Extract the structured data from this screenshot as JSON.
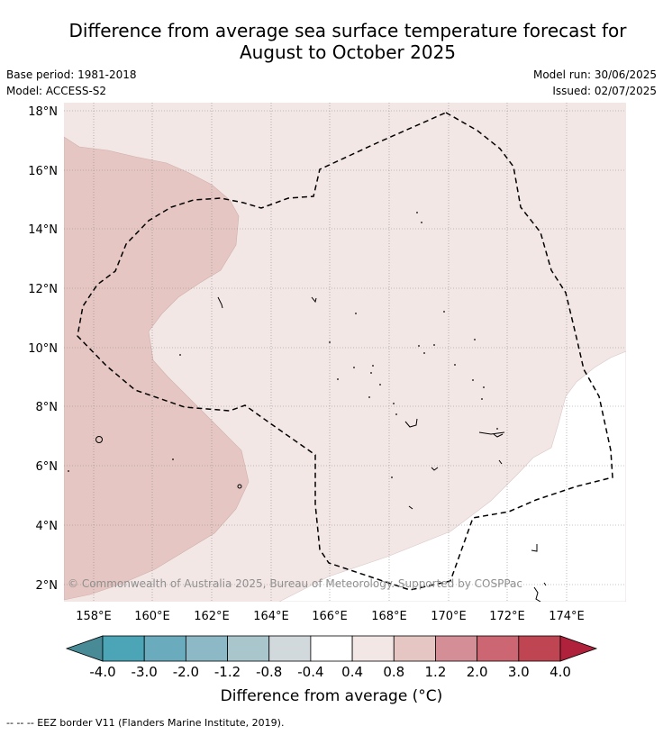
{
  "title_line1": "Difference from average sea surface temperature forecast for",
  "title_line2": "August to October 2025",
  "base_period": "Base period: 1981-2018",
  "model": "Model: ACCESS-S2",
  "model_run": "Model run: 30/06/2025",
  "issued": "Issued: 02/07/2025",
  "copyright": "© Commonwealth of Australia 2025, Bureau of Meteorology. Supported by COSPPac",
  "map": {
    "lat_labels": [
      "18°N",
      "16°N",
      "14°N",
      "12°N",
      "10°N",
      "8°N",
      "6°N",
      "4°N",
      "2°N"
    ],
    "lon_labels": [
      "158°E",
      "160°E",
      "162°E",
      "164°E",
      "166°E",
      "168°E",
      "170°E",
      "172°E",
      "174°E"
    ],
    "region_colors": {
      "anomaly_0_4_to_0_8": "#f3e7e6",
      "anomaly_0_8_to_1_2": "#e6c6c2",
      "anomaly_minus_0_4_to_0_4": "#ffffff"
    }
  },
  "colorbar": {
    "tick_labels": [
      "-4.0",
      "-3.0",
      "-2.0",
      "-1.2",
      "-0.8",
      "-0.4",
      "0.4",
      "0.8",
      "1.2",
      "2.0",
      "3.0",
      "4.0"
    ],
    "colors": [
      "#488a96",
      "#4ba5b6",
      "#6aacbd",
      "#8db8c5",
      "#a8c6cc",
      "#d1d9dc",
      "#ffffff",
      "#f3e7e6",
      "#e6c6c2",
      "#d48e95",
      "#cc6672",
      "#c04552",
      "#b0213b"
    ],
    "title": "Difference from average (°C)"
  },
  "legend_footer": "--  --  -- EEZ border V11 (Flanders Marine Institute, 2019)."
}
